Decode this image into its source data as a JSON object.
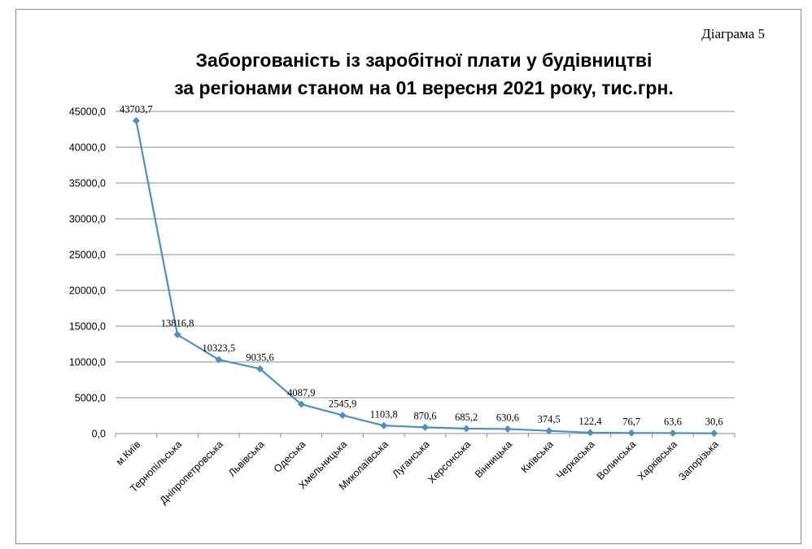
{
  "doc_label": "Діаграма 5",
  "chart_data": {
    "type": "line",
    "title_line1": "Заборгованість із заробітної плати у будівництві",
    "title_line2": "за регіонами станом на 01 вересня 2021 року, тис.грн.",
    "xlabel": "",
    "ylabel": "",
    "ylim": [
      0,
      45000
    ],
    "yticks": [
      0,
      5000,
      10000,
      15000,
      20000,
      25000,
      30000,
      35000,
      40000,
      45000
    ],
    "ytick_labels": [
      "0,0",
      "5000,0",
      "10000,0",
      "15000,0",
      "20000,0",
      "25000,0",
      "30000,0",
      "35000,0",
      "40000,0",
      "45000,0"
    ],
    "grid": true,
    "legend": "none",
    "categories": [
      "м.Київ",
      "Тернопільська",
      "Дніпропетровська",
      "Львівська",
      "Одеська",
      "Хмельницька",
      "Миколаївська",
      "Луганська",
      "Херсонська",
      "Вінницька",
      "Київська",
      "Черкаська",
      "Волинська",
      "Харківська",
      "Запорізька"
    ],
    "values": [
      43703.7,
      13816.8,
      10323.5,
      9035.6,
      4087.9,
      2545.9,
      1103.8,
      870.6,
      685.2,
      630.6,
      374.5,
      122.4,
      76.7,
      63.6,
      30.6
    ],
    "value_labels": [
      "43703,7",
      "13816,8",
      "10323,5",
      "9035,6",
      "4087,9",
      "2545,9",
      "1103,8",
      "870,6",
      "685,2",
      "630,6",
      "374,5",
      "122,4",
      "76,7",
      "63,6",
      "30,6"
    ],
    "line_color": "#4a90c8",
    "grid_color": "#8c8c8c"
  }
}
